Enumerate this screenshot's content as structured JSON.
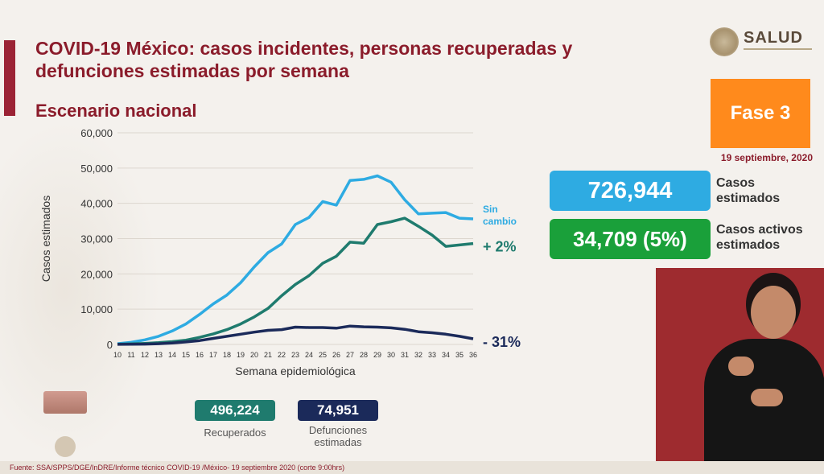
{
  "header": {
    "title": "COVID-19 México: casos incidentes, personas recuperadas y defunciones estimadas por semana",
    "subtitle": "Escenario nacional"
  },
  "logo": {
    "text": "SALUD"
  },
  "phase": {
    "label": "Fase 3",
    "date": "19 septiembre, 2020"
  },
  "stats": [
    {
      "value": "726,944",
      "label": "Casos estimados",
      "color": "#2eabe2"
    },
    {
      "value": "34,709 (5%)",
      "label": "Casos activos estimados",
      "color": "#1aa03a"
    }
  ],
  "totals": {
    "recovered": {
      "value": "496,224",
      "label": "Recuperados",
      "color": "#1f7b6e"
    },
    "deaths": {
      "value": "74,951",
      "label": "Defunciones estimadas",
      "color": "#1b2a5a"
    }
  },
  "source": "Fuente: SSA/SPPS/DGE/InDRE/Informe técnico COVID-19 /México- 19 septiembre 2020 (corte 9:00hrs)",
  "chart_data": {
    "type": "line",
    "xlabel": "Semana epidemiológica",
    "ylabel": "Casos estimados",
    "ylim": [
      0,
      60000
    ],
    "yticks": [
      0,
      10000,
      20000,
      30000,
      40000,
      50000,
      60000
    ],
    "ytick_labels": [
      "0",
      "10,000",
      "20,000",
      "30,000",
      "40,000",
      "50,000",
      "60,000"
    ],
    "x": [
      10,
      11,
      12,
      13,
      14,
      15,
      16,
      17,
      18,
      19,
      20,
      21,
      22,
      23,
      24,
      25,
      26,
      27,
      28,
      29,
      30,
      31,
      32,
      33,
      34,
      35,
      36
    ],
    "grid": true,
    "series": [
      {
        "color": "#2eabe2",
        "end_label": [
          "Sin",
          "cambio"
        ],
        "values": [
          200,
          600,
          1300,
          2300,
          3800,
          5800,
          8500,
          11500,
          14000,
          17500,
          22000,
          26000,
          28500,
          34000,
          36000,
          40500,
          39500,
          46500,
          46800,
          47800,
          46000,
          41000,
          37000,
          37200,
          37400,
          35800,
          35600
        ]
      },
      {
        "color": "#1f7b6e",
        "end_label": [
          "+ 2%"
        ],
        "values": [
          50,
          150,
          300,
          500,
          800,
          1200,
          2000,
          3000,
          4200,
          5800,
          7800,
          10200,
          13800,
          17000,
          19500,
          23000,
          25000,
          29000,
          28700,
          34000,
          34800,
          35800,
          33500,
          31000,
          27800,
          28200,
          28600
        ]
      },
      {
        "color": "#1b2a5a",
        "end_label": [
          "- 31%"
        ],
        "values": [
          20,
          50,
          100,
          200,
          400,
          700,
          1100,
          1700,
          2300,
          2900,
          3500,
          4000,
          4200,
          4900,
          4800,
          4800,
          4600,
          5200,
          5000,
          4900,
          4700,
          4300,
          3600,
          3300,
          2900,
          2300,
          1600
        ]
      }
    ]
  }
}
